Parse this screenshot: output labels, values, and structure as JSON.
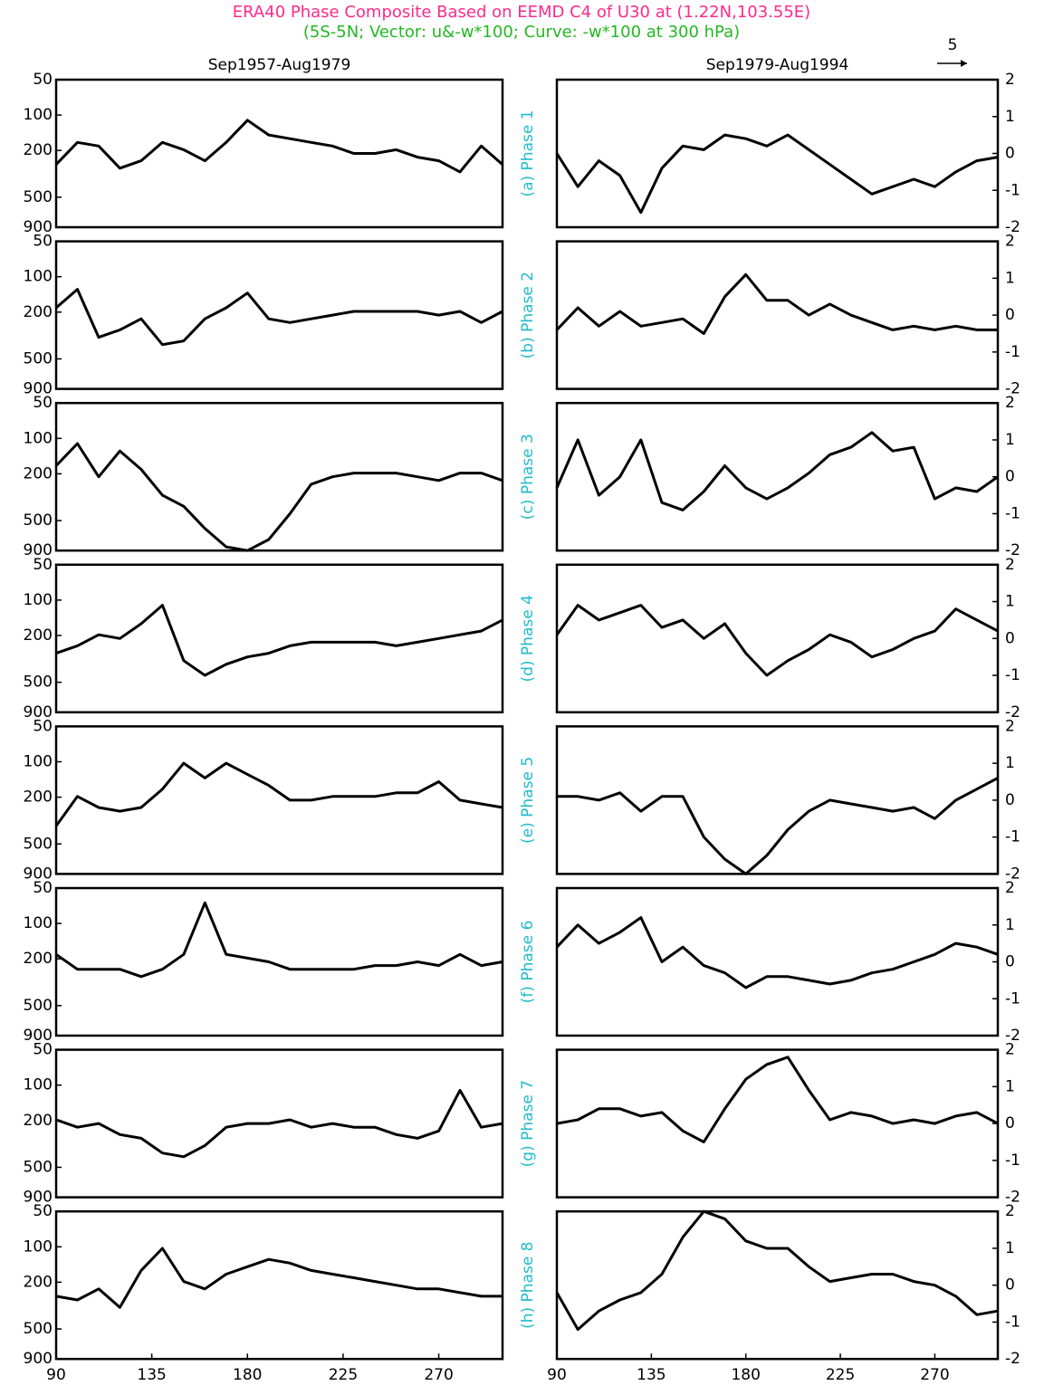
{
  "title": "ERA40 Phase Composite Based on EEMD C4 of U30 at (1.22N,103.55E)",
  "subtitle": "(5S-5N; Vector: u&-w*100; Curve: -w*100 at 300 hPa)",
  "vector_reference": "5",
  "chart_data": [
    {
      "type": "line",
      "title": "Sep1957-Aug1979",
      "x": [
        90,
        100,
        110,
        120,
        130,
        140,
        150,
        160,
        170,
        180,
        190,
        200,
        210,
        220,
        230,
        240,
        250,
        260,
        270,
        280,
        290,
        300
      ],
      "xlim": [
        90,
        300
      ],
      "ylim": [
        900,
        50
      ],
      "yticks": [
        50,
        100,
        200,
        500,
        900
      ],
      "log_y": true,
      "y2lim": [
        -2,
        2
      ],
      "series": [
        {
          "color": "#000000",
          "axis": "y2",
          "values": [
            -0.3,
            0.3,
            0.2,
            -0.4,
            -0.2,
            0.3,
            0.1,
            -0.2,
            0.3,
            0.9,
            0.5,
            0.4,
            0.3,
            0.2,
            0.0,
            0.0,
            0.1,
            -0.1,
            -0.2,
            -0.5,
            0.2,
            -0.3
          ]
        }
      ]
    },
    {
      "type": "line",
      "title": "Sep1979-Aug1994",
      "annotation": "(a) Phase 1",
      "x": [
        90,
        100,
        110,
        120,
        130,
        140,
        150,
        160,
        170,
        180,
        190,
        200,
        210,
        220,
        230,
        240,
        250,
        260,
        270,
        280,
        290,
        300
      ],
      "xlim": [
        90,
        300
      ],
      "y2lim": [
        -2,
        2
      ],
      "y2ticks": [
        -2,
        -1,
        0,
        1,
        2
      ],
      "series": [
        {
          "color": "#000000",
          "axis": "y2",
          "values": [
            0.0,
            -0.9,
            -0.2,
            -0.6,
            -1.6,
            -0.4,
            0.2,
            0.1,
            0.5,
            0.4,
            0.2,
            0.5,
            0.1,
            -0.3,
            -0.7,
            -1.1,
            -0.9,
            -0.7,
            -0.9,
            -0.5,
            -0.2,
            -0.1
          ]
        }
      ]
    },
    {
      "type": "line",
      "x": [
        90,
        100,
        110,
        120,
        130,
        140,
        150,
        160,
        170,
        180,
        190,
        200,
        210,
        220,
        230,
        240,
        250,
        260,
        270,
        280,
        290,
        300
      ],
      "xlim": [
        90,
        300
      ],
      "ylim": [
        900,
        50
      ],
      "yticks": [
        50,
        100,
        200,
        500,
        900
      ],
      "log_y": true,
      "y2lim": [
        -2,
        2
      ],
      "series": [
        {
          "color": "#000000",
          "axis": "y2",
          "values": [
            0.2,
            0.7,
            -0.6,
            -0.4,
            -0.1,
            -0.8,
            -0.7,
            -0.1,
            0.2,
            0.6,
            -0.1,
            -0.2,
            -0.1,
            0.0,
            0.1,
            0.1,
            0.1,
            0.1,
            0.0,
            0.1,
            -0.2,
            0.1
          ]
        }
      ]
    },
    {
      "type": "line",
      "annotation": "(b) Phase 2",
      "x": [
        90,
        100,
        110,
        120,
        130,
        140,
        150,
        160,
        170,
        180,
        190,
        200,
        210,
        220,
        230,
        240,
        250,
        260,
        270,
        280,
        290,
        300
      ],
      "xlim": [
        90,
        300
      ],
      "y2lim": [
        -2,
        2
      ],
      "y2ticks": [
        -2,
        -1,
        0,
        1,
        2
      ],
      "series": [
        {
          "color": "#000000",
          "axis": "y2",
          "values": [
            -0.4,
            0.2,
            -0.3,
            0.1,
            -0.3,
            -0.2,
            -0.1,
            -0.5,
            0.5,
            1.1,
            0.4,
            0.4,
            0.0,
            0.3,
            0.0,
            -0.2,
            -0.4,
            -0.3,
            -0.4,
            -0.3,
            -0.4,
            -0.4
          ]
        }
      ]
    },
    {
      "type": "line",
      "x": [
        90,
        100,
        110,
        120,
        130,
        140,
        150,
        160,
        170,
        180,
        190,
        200,
        210,
        220,
        230,
        240,
        250,
        260,
        270,
        280,
        290,
        300
      ],
      "xlim": [
        90,
        300
      ],
      "ylim": [
        900,
        50
      ],
      "yticks": [
        50,
        100,
        200,
        500,
        900
      ],
      "log_y": true,
      "y2lim": [
        -2,
        2
      ],
      "series": [
        {
          "color": "#000000",
          "axis": "y2",
          "values": [
            0.3,
            0.9,
            0.0,
            0.7,
            0.2,
            -0.5,
            -0.8,
            -1.4,
            -1.9,
            -2.0,
            -1.7,
            -1.0,
            -0.2,
            0.0,
            0.1,
            0.1,
            0.1,
            0.0,
            -0.1,
            0.1,
            0.1,
            -0.1
          ]
        }
      ]
    },
    {
      "type": "line",
      "annotation": "(c) Phase 3",
      "x": [
        90,
        100,
        110,
        120,
        130,
        140,
        150,
        160,
        170,
        180,
        190,
        200,
        210,
        220,
        230,
        240,
        250,
        260,
        270,
        280,
        290,
        300
      ],
      "xlim": [
        90,
        300
      ],
      "y2lim": [
        -2,
        2
      ],
      "y2ticks": [
        -2,
        -1,
        0,
        1,
        2
      ],
      "series": [
        {
          "color": "#000000",
          "axis": "y2",
          "values": [
            -0.3,
            1.0,
            -0.5,
            0.0,
            1.0,
            -0.7,
            -0.9,
            -0.4,
            0.3,
            -0.3,
            -0.6,
            -0.3,
            0.1,
            0.6,
            0.8,
            1.2,
            0.7,
            0.8,
            -0.6,
            -0.3,
            -0.4,
            0.0
          ]
        }
      ]
    },
    {
      "type": "line",
      "x": [
        90,
        100,
        110,
        120,
        130,
        140,
        150,
        160,
        170,
        180,
        190,
        200,
        210,
        220,
        230,
        240,
        250,
        260,
        270,
        280,
        290,
        300
      ],
      "xlim": [
        90,
        300
      ],
      "ylim": [
        900,
        50
      ],
      "yticks": [
        50,
        100,
        200,
        500,
        900
      ],
      "log_y": true,
      "y2lim": [
        -2,
        2
      ],
      "series": [
        {
          "color": "#000000",
          "axis": "y2",
          "values": [
            -0.4,
            -0.2,
            0.1,
            0.0,
            0.4,
            0.9,
            -0.6,
            -1.0,
            -0.7,
            -0.5,
            -0.4,
            -0.2,
            -0.1,
            -0.1,
            -0.1,
            -0.1,
            -0.2,
            -0.1,
            0.0,
            0.1,
            0.2,
            0.5
          ]
        }
      ]
    },
    {
      "type": "line",
      "annotation": "(d) Phase 4",
      "x": [
        90,
        100,
        110,
        120,
        130,
        140,
        150,
        160,
        170,
        180,
        190,
        200,
        210,
        220,
        230,
        240,
        250,
        260,
        270,
        280,
        290,
        300
      ],
      "xlim": [
        90,
        300
      ],
      "y2lim": [
        -2,
        2
      ],
      "y2ticks": [
        -2,
        -1,
        0,
        1,
        2
      ],
      "series": [
        {
          "color": "#000000",
          "axis": "y2",
          "values": [
            0.1,
            0.9,
            0.5,
            0.7,
            0.9,
            0.3,
            0.5,
            0.0,
            0.4,
            -0.4,
            -1.0,
            -0.6,
            -0.3,
            0.1,
            -0.1,
            -0.5,
            -0.3,
            0.0,
            0.2,
            0.8,
            0.5,
            0.2
          ]
        }
      ]
    },
    {
      "type": "line",
      "x": [
        90,
        100,
        110,
        120,
        130,
        140,
        150,
        160,
        170,
        180,
        190,
        200,
        210,
        220,
        230,
        240,
        250,
        260,
        270,
        280,
        290,
        300
      ],
      "xlim": [
        90,
        300
      ],
      "ylim": [
        900,
        50
      ],
      "yticks": [
        50,
        100,
        200,
        500,
        900
      ],
      "log_y": true,
      "y2lim": [
        -2,
        2
      ],
      "series": [
        {
          "color": "#000000",
          "axis": "y2",
          "values": [
            -0.7,
            0.1,
            -0.2,
            -0.3,
            -0.2,
            0.3,
            1.0,
            0.6,
            1.0,
            0.7,
            0.4,
            0.0,
            0.0,
            0.1,
            0.1,
            0.1,
            0.2,
            0.2,
            0.5,
            0.0,
            -0.1,
            -0.2
          ]
        }
      ]
    },
    {
      "type": "line",
      "annotation": "(e) Phase 5",
      "x": [
        90,
        100,
        110,
        120,
        130,
        140,
        150,
        160,
        170,
        180,
        190,
        200,
        210,
        220,
        230,
        240,
        250,
        260,
        270,
        280,
        290,
        300
      ],
      "xlim": [
        90,
        300
      ],
      "y2lim": [
        -2,
        2
      ],
      "y2ticks": [
        -2,
        -1,
        0,
        1,
        2
      ],
      "series": [
        {
          "color": "#000000",
          "axis": "y2",
          "values": [
            0.1,
            0.1,
            0.0,
            0.2,
            -0.3,
            0.1,
            0.1,
            -1.0,
            -1.6,
            -2.0,
            -1.5,
            -0.8,
            -0.3,
            0.0,
            -0.1,
            -0.2,
            -0.3,
            -0.2,
            -0.5,
            0.0,
            0.3,
            0.6
          ]
        }
      ]
    },
    {
      "type": "line",
      "x": [
        90,
        100,
        110,
        120,
        130,
        140,
        150,
        160,
        170,
        180,
        190,
        200,
        210,
        220,
        230,
        240,
        250,
        260,
        270,
        280,
        290,
        300
      ],
      "xlim": [
        90,
        300
      ],
      "ylim": [
        900,
        50
      ],
      "yticks": [
        50,
        100,
        200,
        500,
        900
      ],
      "log_y": true,
      "y2lim": [
        -2,
        2
      ],
      "series": [
        {
          "color": "#000000",
          "axis": "y2",
          "values": [
            0.2,
            -0.2,
            -0.2,
            -0.2,
            -0.4,
            -0.2,
            0.2,
            1.6,
            0.2,
            0.1,
            0.0,
            -0.2,
            -0.2,
            -0.2,
            -0.2,
            -0.1,
            -0.1,
            0.0,
            -0.1,
            0.2,
            -0.1,
            0.0
          ]
        }
      ]
    },
    {
      "type": "line",
      "annotation": "(f) Phase 6",
      "x": [
        90,
        100,
        110,
        120,
        130,
        140,
        150,
        160,
        170,
        180,
        190,
        200,
        210,
        220,
        230,
        240,
        250,
        260,
        270,
        280,
        290,
        300
      ],
      "xlim": [
        90,
        300
      ],
      "y2lim": [
        -2,
        2
      ],
      "y2ticks": [
        -2,
        -1,
        0,
        1,
        2
      ],
      "series": [
        {
          "color": "#000000",
          "axis": "y2",
          "values": [
            0.4,
            1.0,
            0.5,
            0.8,
            1.2,
            0.0,
            0.4,
            -0.1,
            -0.3,
            -0.7,
            -0.4,
            -0.4,
            -0.5,
            -0.6,
            -0.5,
            -0.3,
            -0.2,
            0.0,
            0.2,
            0.5,
            0.4,
            0.2
          ]
        }
      ]
    },
    {
      "type": "line",
      "x": [
        90,
        100,
        110,
        120,
        130,
        140,
        150,
        160,
        170,
        180,
        190,
        200,
        210,
        220,
        230,
        240,
        250,
        260,
        270,
        280,
        290,
        300
      ],
      "xlim": [
        90,
        300
      ],
      "ylim": [
        900,
        50
      ],
      "yticks": [
        50,
        100,
        200,
        500,
        900
      ],
      "log_y": true,
      "y2lim": [
        -2,
        2
      ],
      "series": [
        {
          "color": "#000000",
          "axis": "y2",
          "values": [
            0.1,
            -0.1,
            0.0,
            -0.3,
            -0.4,
            -0.8,
            -0.9,
            -0.6,
            -0.1,
            0.0,
            0.0,
            0.1,
            -0.1,
            0.0,
            -0.1,
            -0.1,
            -0.3,
            -0.4,
            -0.2,
            0.9,
            -0.1,
            0.0
          ]
        }
      ]
    },
    {
      "type": "line",
      "annotation": "(g) Phase 7",
      "x": [
        90,
        100,
        110,
        120,
        130,
        140,
        150,
        160,
        170,
        180,
        190,
        200,
        210,
        220,
        230,
        240,
        250,
        260,
        270,
        280,
        290,
        300
      ],
      "xlim": [
        90,
        300
      ],
      "y2lim": [
        -2,
        2
      ],
      "y2ticks": [
        -2,
        -1,
        0,
        1,
        2
      ],
      "series": [
        {
          "color": "#000000",
          "axis": "y2",
          "values": [
            0.0,
            0.1,
            0.4,
            0.4,
            0.2,
            0.3,
            -0.2,
            -0.5,
            0.4,
            1.2,
            1.6,
            1.8,
            0.9,
            0.1,
            0.3,
            0.2,
            0.0,
            0.1,
            0.0,
            0.2,
            0.3,
            0.0
          ]
        }
      ]
    },
    {
      "type": "line",
      "x": [
        90,
        100,
        110,
        120,
        130,
        140,
        150,
        160,
        170,
        180,
        190,
        200,
        210,
        220,
        230,
        240,
        250,
        260,
        270,
        280,
        290,
        300
      ],
      "xlim": [
        90,
        300
      ],
      "xticks": [
        90,
        135,
        180,
        225,
        270
      ],
      "ylim": [
        900,
        50
      ],
      "yticks": [
        50,
        100,
        200,
        500,
        900
      ],
      "log_y": true,
      "y2lim": [
        -2,
        2
      ],
      "series": [
        {
          "color": "#000000",
          "axis": "y2",
          "values": [
            -0.3,
            -0.4,
            -0.1,
            -0.6,
            0.4,
            1.0,
            0.1,
            -0.1,
            0.3,
            0.5,
            0.7,
            0.6,
            0.4,
            0.3,
            0.2,
            0.1,
            0.0,
            -0.1,
            -0.1,
            -0.2,
            -0.3,
            -0.3
          ]
        }
      ]
    },
    {
      "type": "line",
      "annotation": "(h) Phase 8",
      "x": [
        90,
        100,
        110,
        120,
        130,
        140,
        150,
        160,
        170,
        180,
        190,
        200,
        210,
        220,
        230,
        240,
        250,
        260,
        270,
        280,
        290,
        300
      ],
      "xlim": [
        90,
        300
      ],
      "xticks": [
        90,
        135,
        180,
        225,
        270
      ],
      "y2lim": [
        -2,
        2
      ],
      "y2ticks": [
        -2,
        -1,
        0,
        1,
        2
      ],
      "series": [
        {
          "color": "#000000",
          "axis": "y2",
          "values": [
            -0.2,
            -1.2,
            -0.7,
            -0.4,
            -0.2,
            0.3,
            1.3,
            2.0,
            1.8,
            1.2,
            1.0,
            1.0,
            0.5,
            0.1,
            0.2,
            0.3,
            0.3,
            0.1,
            0.0,
            -0.3,
            -0.8,
            -0.7
          ]
        }
      ]
    }
  ]
}
